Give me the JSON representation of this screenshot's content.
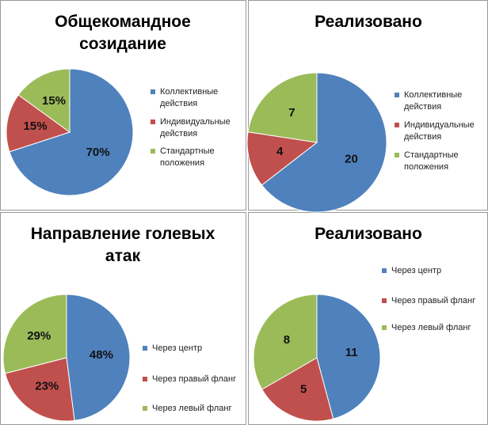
{
  "chart_data": [
    {
      "type": "pie",
      "title": "Общекомандное созидание",
      "categories": [
        "Коллективные действия",
        "Индивидуальные действия",
        "Стандартные положения"
      ],
      "values": [
        70,
        15,
        15
      ],
      "value_labels": [
        "70%",
        "15%",
        "15%"
      ],
      "colors": [
        "#4f81bd",
        "#c0504d",
        "#9bbb59"
      ],
      "legend": "right"
    },
    {
      "type": "pie",
      "title": "Реализовано",
      "categories": [
        "Коллективные действия",
        "Индивидуальные действия",
        "Стандартные положения"
      ],
      "values": [
        20,
        4,
        7
      ],
      "colors": [
        "#4f81bd",
        "#c0504d",
        "#9bbb59"
      ],
      "legend": "right"
    },
    {
      "type": "pie",
      "title": "Направление голевых атак",
      "categories": [
        "Через центр",
        "Через правый фланг",
        "Через левый фланг"
      ],
      "values": [
        48,
        23,
        29
      ],
      "value_labels": [
        "48%",
        "23%",
        "29%"
      ],
      "colors": [
        "#4f81bd",
        "#c0504d",
        "#9bbb59"
      ],
      "legend": "right"
    },
    {
      "type": "pie",
      "title": "Реализовано",
      "categories": [
        "Через центр",
        "Через правый фланг",
        "Через левый фланг"
      ],
      "values": [
        11,
        5,
        8
      ],
      "colors": [
        "#4f81bd",
        "#c0504d",
        "#9bbb59"
      ],
      "legend": "right"
    }
  ]
}
